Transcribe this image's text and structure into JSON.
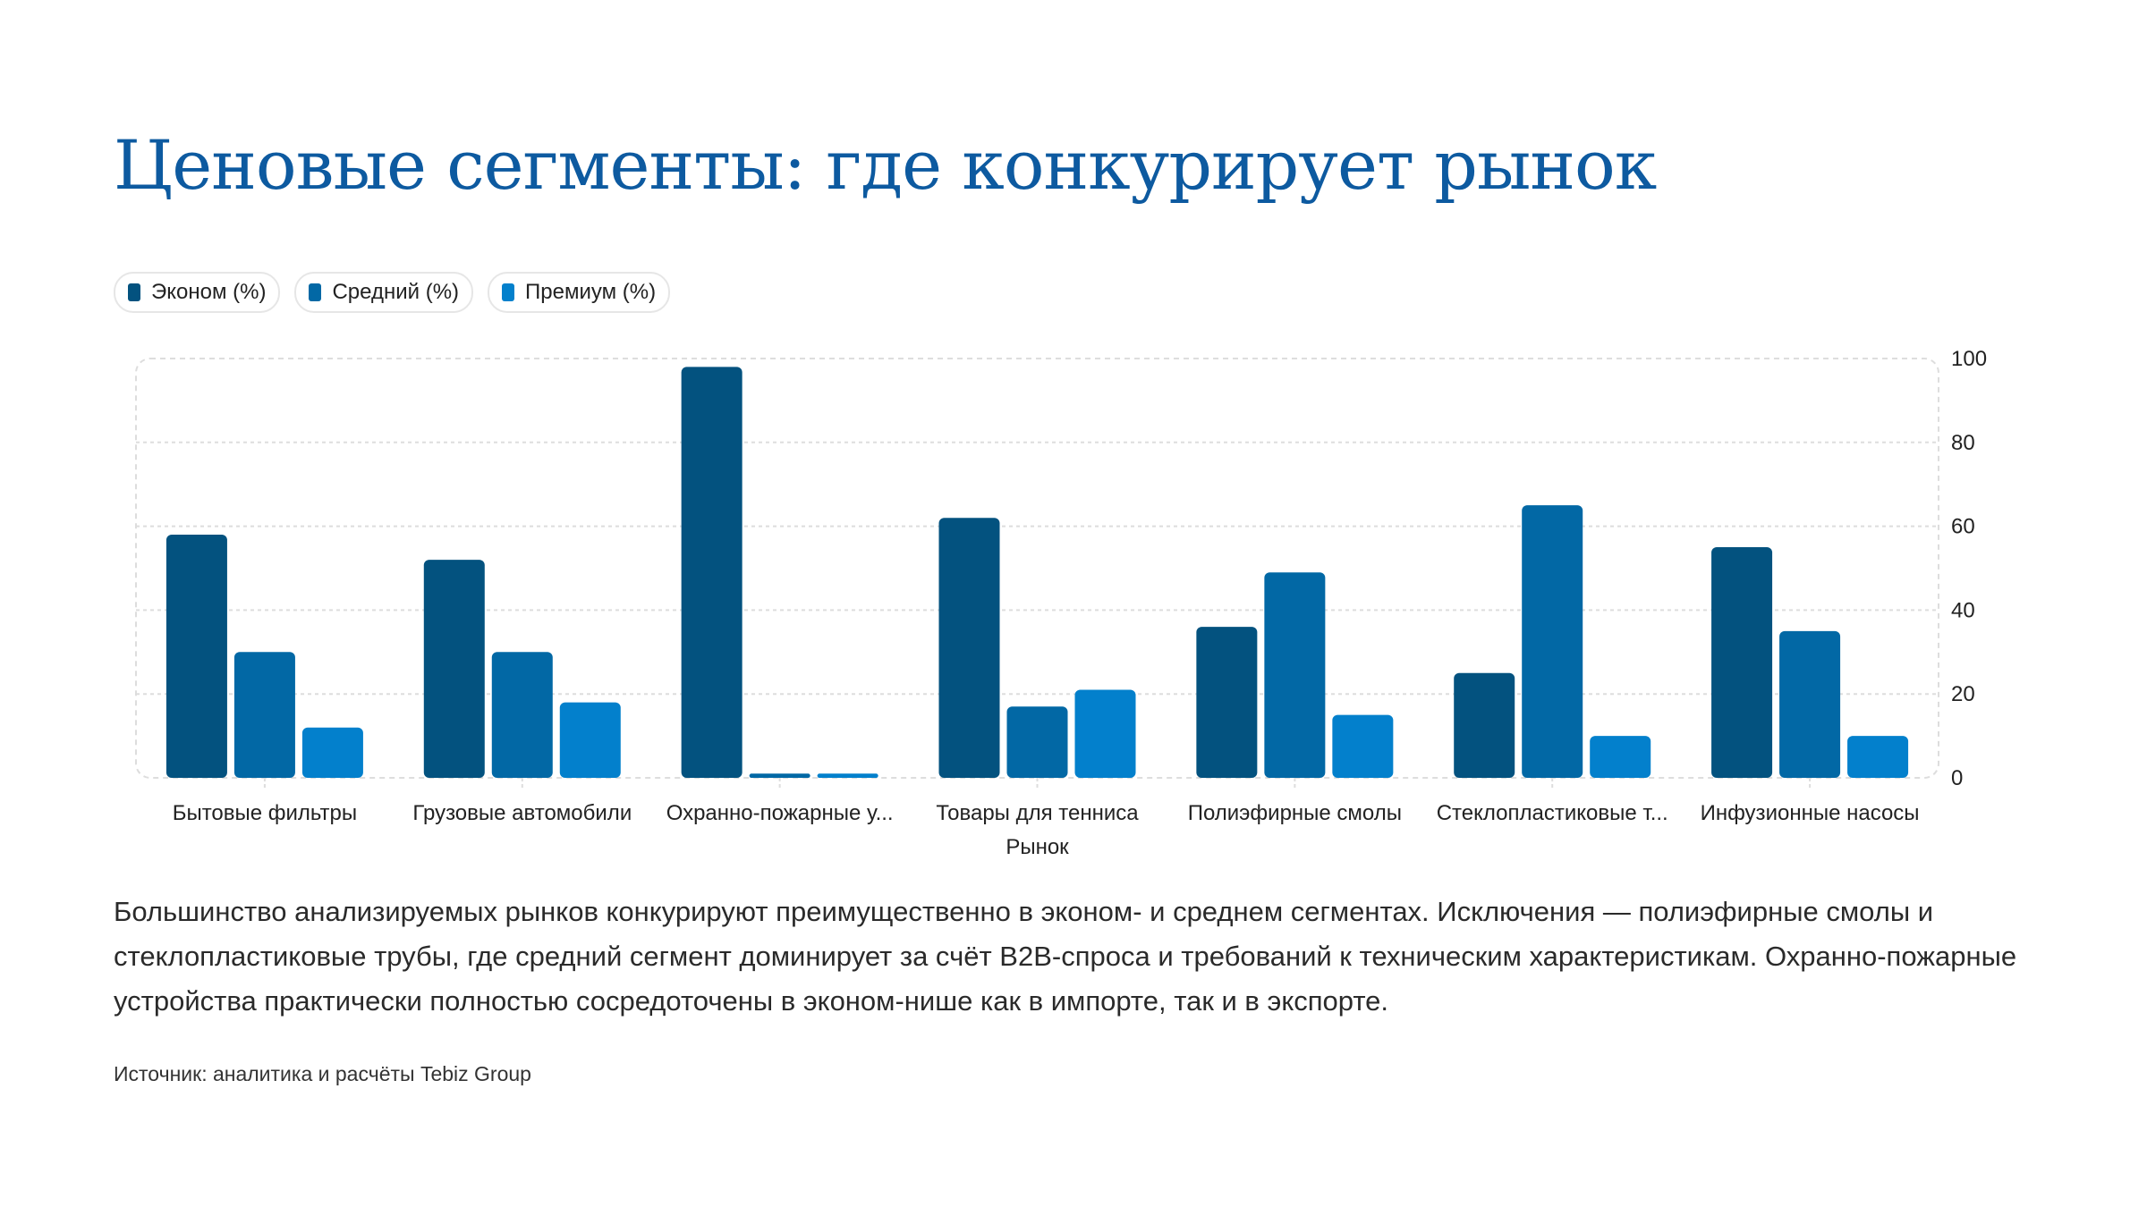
{
  "title": "Ценовые сегменты: где конкурирует рынок",
  "chart_data": {
    "type": "bar",
    "categories": [
      "Бытовые фильтры",
      "Грузовые автомобили",
      "Охранно-пожарные у...",
      "Товары для тенниса",
      "Полиэфирные смолы",
      "Стеклопластиковые т...",
      "Инфузионные насосы"
    ],
    "series": [
      {
        "name": "Эконом (%)",
        "color": "#03527f",
        "values": [
          58,
          52,
          98,
          62,
          36,
          25,
          55
        ]
      },
      {
        "name": "Средний (%)",
        "color": "#0268a5",
        "values": [
          30,
          30,
          1,
          17,
          49,
          65,
          35
        ]
      },
      {
        "name": "Премиум (%)",
        "color": "#0380cc",
        "values": [
          12,
          18,
          1,
          21,
          15,
          10,
          10
        ]
      }
    ],
    "xlabel": "Рынок",
    "ylabel": "",
    "ylim": [
      0,
      100
    ],
    "yticks": [
      "0",
      "20",
      "40",
      "60",
      "80",
      "100"
    ],
    "y_axis_side": "right",
    "grid": true,
    "legend": "top-left"
  },
  "description": "Большинство анализируемых рынков конкурируют преимущественно в эконом- и среднем сегментах. Исключения — полиэфирные смолы и стеклопластиковые трубы, где средний сегмент доминирует за счёт B2B-спроса и требований к техническим характеристикам. Охранно-пожарные устройства практически полностью сосредоточены в эконом-нише как в импорте, так и в экспорте.",
  "source": "Источник: аналитика и расчёты Tebiz Group"
}
